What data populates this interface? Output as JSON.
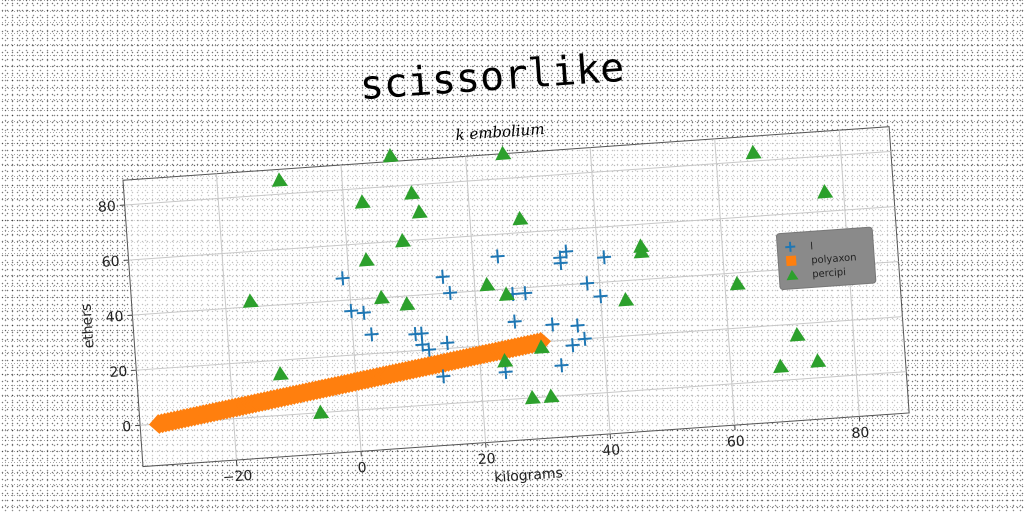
{
  "chart_data": {
    "type": "scatter",
    "title": "scissorlike",
    "subtitle": "k embolium",
    "xlabel": "kilograms",
    "ylabel": "ethers",
    "xlim": [
      -35,
      88
    ],
    "ylim": [
      -15,
      89
    ],
    "xticks": [
      -20,
      0,
      20,
      40,
      60,
      80
    ],
    "yticks": [
      0,
      20,
      40,
      60,
      80
    ],
    "grid": true,
    "legend_position": "center-right",
    "series": [
      {
        "name": "l",
        "marker": "plus",
        "color": "#1f77b4",
        "points": [
          [
            -1,
            48
          ],
          [
            0,
            36
          ],
          [
            2,
            35
          ],
          [
            3,
            27
          ],
          [
            10,
            26
          ],
          [
            11,
            26
          ],
          [
            11,
            22
          ],
          [
            12,
            20
          ],
          [
            14,
            10
          ],
          [
            15,
            22
          ],
          [
            15,
            46
          ],
          [
            16,
            40
          ],
          [
            24,
            52
          ],
          [
            24,
            10
          ],
          [
            26,
            28
          ],
          [
            26,
            38
          ],
          [
            28,
            38
          ],
          [
            32,
            26
          ],
          [
            33,
            11
          ],
          [
            34,
            48
          ],
          [
            34,
            50
          ],
          [
            35,
            52
          ],
          [
            35,
            18
          ],
          [
            36,
            25
          ],
          [
            37,
            20
          ],
          [
            38,
            40
          ],
          [
            40,
            35
          ],
          [
            41,
            49
          ]
        ]
      },
      {
        "name": "polyaxon",
        "marker": "square",
        "color": "#ff7f0e",
        "line": {
          "x_start": -32,
          "x_end": 30,
          "y_start": 0,
          "y_end": 20,
          "count": 120
        }
      },
      {
        "name": "percipi",
        "marker": "triangle",
        "color": "#2ca02c",
        "points": [
          [
            -10,
            85
          ],
          [
            -16,
            42
          ],
          [
            -12,
            15
          ],
          [
            -6,
            0
          ],
          [
            3,
            75
          ],
          [
            3,
            54
          ],
          [
            5,
            40
          ],
          [
            8,
            91
          ],
          [
            9,
            37
          ],
          [
            9,
            60
          ],
          [
            11,
            77
          ],
          [
            12,
            70
          ],
          [
            22,
            42
          ],
          [
            24,
            14
          ],
          [
            25,
            38
          ],
          [
            26,
            89
          ],
          [
            28,
            65
          ],
          [
            28,
            0
          ],
          [
            30,
            18
          ],
          [
            31,
            0
          ],
          [
            44,
            33
          ],
          [
            47,
            50
          ],
          [
            47,
            52
          ],
          [
            62,
            36
          ],
          [
            66,
            83
          ],
          [
            68,
            5
          ],
          [
            71,
            16
          ],
          [
            74,
            6
          ],
          [
            76,
            36
          ],
          [
            77,
            67
          ],
          [
            80,
            38
          ]
        ]
      }
    ]
  }
}
